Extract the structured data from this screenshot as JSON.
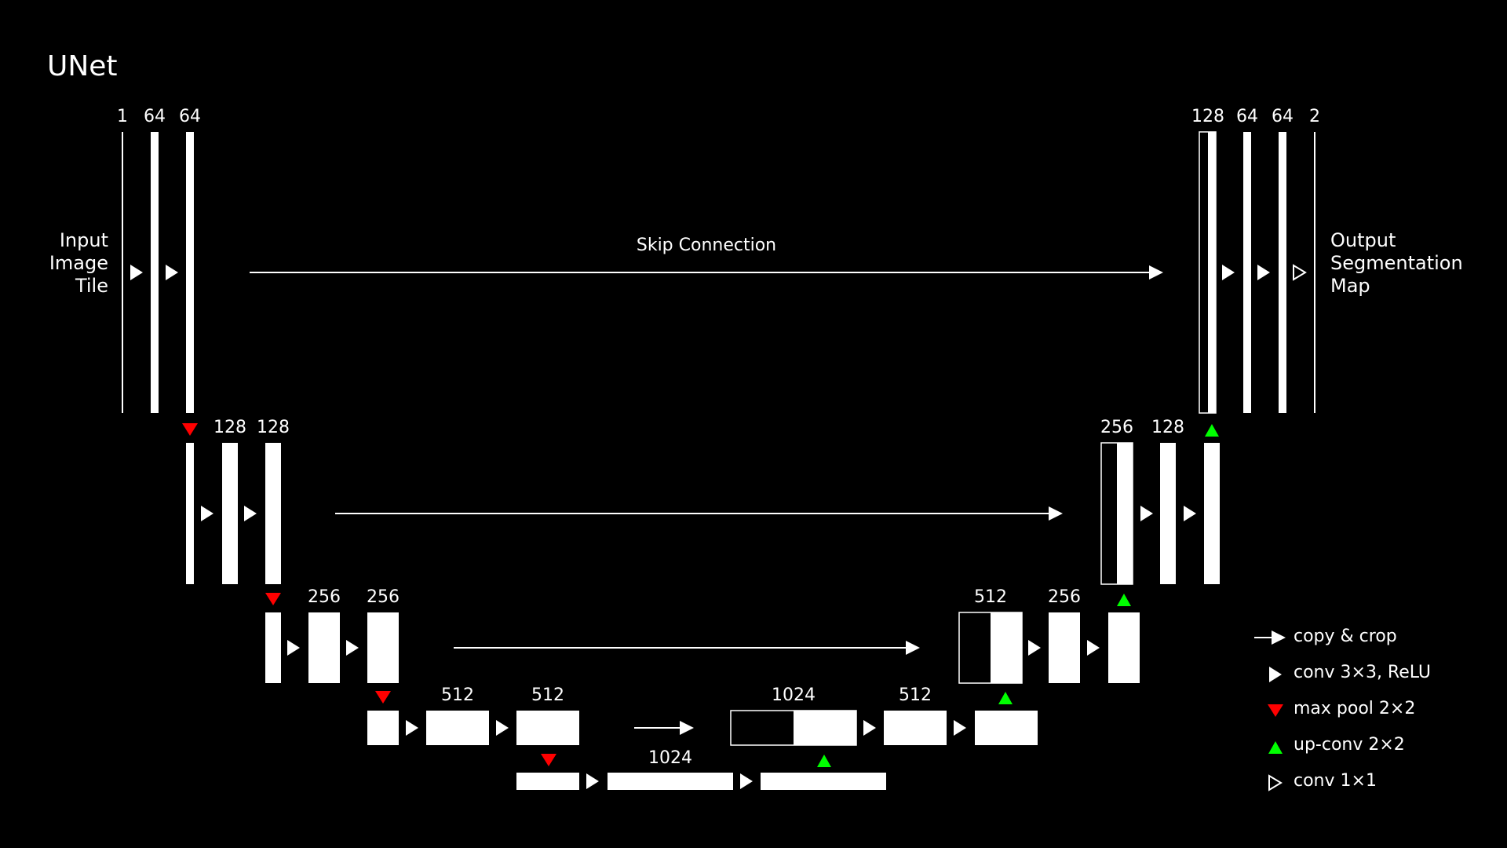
{
  "title": "UNet",
  "labels": {
    "input": "Input\nImage\nTile",
    "output": "Output\nSegmentation\nMap",
    "skip": "Skip Connection"
  },
  "channels": {
    "l1_enc": [
      "1",
      "64",
      "64"
    ],
    "l2_enc": [
      "128",
      "128"
    ],
    "l3_enc": [
      "256",
      "256"
    ],
    "l4_enc": [
      "512",
      "512"
    ],
    "l5": [
      "1024"
    ],
    "l4_dec": [
      "1024",
      "512"
    ],
    "l3_dec": [
      "512",
      "256"
    ],
    "l2_dec": [
      "256",
      "128"
    ],
    "l1_dec": [
      "128",
      "64",
      "64",
      "2"
    ]
  },
  "legend": [
    {
      "symbol": "arrow-right-icon",
      "label": "copy & crop"
    },
    {
      "symbol": "play-white-icon",
      "label": "conv 3×3, ReLU"
    },
    {
      "symbol": "triangle-down-red-icon",
      "label": "max pool 2×2"
    },
    {
      "symbol": "triangle-up-green-icon",
      "label": "up-conv 2×2"
    },
    {
      "symbol": "play-outline-icon",
      "label": "conv 1×1"
    }
  ],
  "colors": {
    "background": "#000000",
    "foreground": "#ffffff",
    "maxpool": "#ff0000",
    "upconv": "#00ff00"
  }
}
